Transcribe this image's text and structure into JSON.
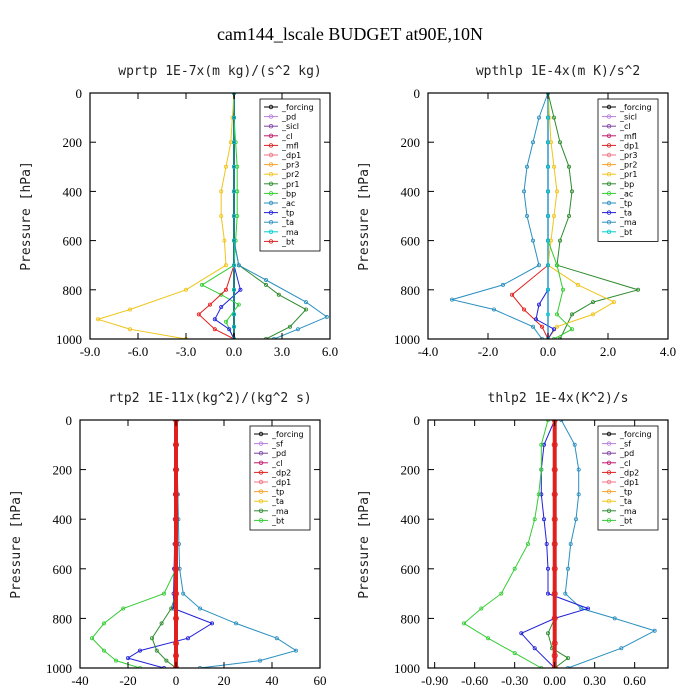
{
  "title": "cam144_lscale  BUDGET at90E,10N",
  "colors": {
    "black": "#000000",
    "red": "#e0201e",
    "orange": "#f5a02a",
    "gold": "#f0c419",
    "green": "#2e8b2e",
    "lime": "#33cc33",
    "teal": "#2a8fbf",
    "blue": "#2020d8",
    "cyan": "#00cccc",
    "violet": "#b57edc",
    "purple": "#7b3fa0",
    "magenta": "#c0186b",
    "pink": "#f07080"
  },
  "chart_data": [
    {
      "type": "line",
      "title": "wprtp   1E-7x(m kg)/(s^2 kg)",
      "ylabel": "Pressure [hPa]",
      "xlim": [
        -9,
        6
      ],
      "ylim": [
        1000,
        0
      ],
      "xticks": [
        "-9.0",
        "-6.0",
        "-3.0",
        "0.0",
        "3.0",
        "6.0"
      ],
      "xtick_values": [
        -9,
        -6,
        -3,
        0,
        3,
        6
      ],
      "yticks": [
        "0",
        "200",
        "400",
        "600",
        "800",
        "1000"
      ],
      "ytick_values": [
        0,
        200,
        400,
        600,
        800,
        1000
      ],
      "legend_position": "top-right-inside",
      "legend": [
        "_forcing",
        "_pd",
        "_sicl",
        "_cl",
        "_mfl",
        "_dp1",
        "_pr3",
        "_pr2",
        "_pr1",
        "_bp",
        "_ac",
        "_tp",
        "_ta",
        "_ma",
        "_bt"
      ],
      "series": [
        {
          "name": "_forcing",
          "color": "#000000",
          "width": 1.8,
          "x": [
            0,
            0,
            0,
            0,
            0,
            0,
            0,
            0,
            0,
            0,
            0,
            0
          ],
          "y": [
            0,
            100,
            200,
            300,
            400,
            500,
            600,
            700,
            800,
            900,
            950,
            1000
          ]
        },
        {
          "name": "_pr1",
          "color": "#f0c419",
          "width": 1,
          "x": [
            0,
            -0.1,
            -0.2,
            -0.5,
            -0.8,
            -0.8,
            -0.6,
            -0.5,
            -3.0,
            -6.5,
            -8.5,
            -6.5,
            -3.0
          ],
          "y": [
            0,
            100,
            200,
            300,
            400,
            500,
            600,
            700,
            800,
            880,
            920,
            960,
            1000
          ]
        },
        {
          "name": "_ac",
          "color": "#33cc33",
          "width": 1,
          "x": [
            0,
            0,
            0.1,
            0.2,
            0.2,
            0.2,
            0.1,
            0,
            -2.0,
            -0.8,
            0.3,
            -0.5,
            0
          ],
          "y": [
            0,
            100,
            200,
            300,
            400,
            500,
            600,
            700,
            780,
            820,
            860,
            930,
            1000
          ]
        },
        {
          "name": "_bp",
          "color": "#2e8b2e",
          "width": 1,
          "x": [
            0,
            0,
            0,
            0,
            0,
            0,
            0,
            0.3,
            2.0,
            2.8,
            4.5,
            3.5,
            2.0
          ],
          "y": [
            0,
            100,
            200,
            300,
            400,
            500,
            600,
            700,
            780,
            820,
            880,
            950,
            1000
          ]
        },
        {
          "name": "_tp",
          "color": "#2a8fbf",
          "width": 1,
          "x": [
            0,
            0,
            0,
            0,
            0,
            0,
            0,
            0.3,
            2.0,
            4.5,
            5.8,
            4.0,
            2.5
          ],
          "y": [
            0,
            100,
            200,
            300,
            400,
            500,
            600,
            700,
            760,
            850,
            910,
            960,
            1000
          ]
        },
        {
          "name": "_ta",
          "color": "#2020d8",
          "width": 1,
          "x": [
            0,
            0,
            0,
            0,
            0,
            0,
            0,
            0,
            0.4,
            -0.8,
            -1.2,
            -0.3,
            0
          ],
          "y": [
            0,
            100,
            200,
            300,
            400,
            500,
            600,
            700,
            800,
            870,
            920,
            960,
            1000
          ]
        },
        {
          "name": "_dp1",
          "color": "#e0201e",
          "width": 1,
          "x": [
            0,
            0,
            0,
            0,
            0,
            0,
            0,
            0,
            -0.5,
            -1.5,
            -2.2,
            -1.2,
            0
          ],
          "y": [
            0,
            100,
            200,
            300,
            400,
            500,
            600,
            700,
            800,
            860,
            900,
            960,
            1000
          ]
        },
        {
          "name": "_bt",
          "color": "#00cccc",
          "width": 1,
          "x": [
            0,
            0,
            0,
            0,
            0,
            0,
            0,
            0,
            0,
            0,
            0,
            0
          ],
          "y": [
            0,
            100,
            200,
            300,
            400,
            500,
            600,
            700,
            800,
            900,
            950,
            1000
          ]
        }
      ]
    },
    {
      "type": "line",
      "title": "wpthlp   1E-4x(m K)/s^2",
      "ylabel": "Pressure [hPa]",
      "xlim": [
        -4,
        4
      ],
      "ylim": [
        1000,
        0
      ],
      "xticks": [
        "-4.0",
        "-2.0",
        "0.0",
        "2.0",
        "4.0"
      ],
      "xtick_values": [
        -4,
        -2,
        0,
        2,
        4
      ],
      "yticks": [
        "0",
        "200",
        "400",
        "600",
        "800",
        "1000"
      ],
      "ytick_values": [
        0,
        200,
        400,
        600,
        800,
        1000
      ],
      "legend_position": "top-right-inside",
      "legend": [
        "_forcing",
        "_sicl",
        "_cl",
        "_mfl",
        "_dp1",
        "_pr3",
        "_pr2",
        "_pr1",
        "_bp",
        "_ac",
        "_tp",
        "_ta",
        "_ma",
        "_bt"
      ],
      "series": [
        {
          "name": "_forcing",
          "color": "#b57edc",
          "width": 1.8,
          "x": [
            0,
            0,
            0,
            0,
            0,
            0,
            0,
            0,
            0,
            0
          ],
          "y": [
            0,
            100,
            200,
            300,
            400,
            500,
            600,
            700,
            800,
            1000
          ]
        },
        {
          "name": "_bp",
          "color": "#2e8b2e",
          "width": 1,
          "x": [
            0,
            0.2,
            0.4,
            0.7,
            0.8,
            0.7,
            0.4,
            0.3,
            3.0,
            1.5,
            0.8,
            0.4
          ],
          "y": [
            0,
            100,
            200,
            300,
            400,
            500,
            600,
            700,
            800,
            850,
            900,
            1000
          ]
        },
        {
          "name": "_tp",
          "color": "#2a8fbf",
          "width": 1,
          "x": [
            0,
            -0.3,
            -0.5,
            -0.7,
            -0.8,
            -0.7,
            -0.5,
            -0.3,
            -1.5,
            -3.2,
            -1.8,
            -0.5,
            -0.2
          ],
          "y": [
            0,
            100,
            200,
            300,
            400,
            500,
            600,
            700,
            780,
            840,
            880,
            950,
            1000
          ]
        },
        {
          "name": "_pr1",
          "color": "#f0c419",
          "width": 1,
          "x": [
            0,
            0.05,
            0.1,
            0.2,
            0.3,
            0.2,
            0.1,
            0,
            1.0,
            2.2,
            1.5,
            0.3,
            0
          ],
          "y": [
            0,
            100,
            200,
            300,
            400,
            500,
            600,
            700,
            780,
            850,
            900,
            950,
            1000
          ]
        },
        {
          "name": "_dp1",
          "color": "#e0201e",
          "width": 1,
          "x": [
            0,
            0,
            0,
            0,
            0,
            0,
            0,
            0,
            -1.2,
            -0.8,
            -0.2,
            0
          ],
          "y": [
            0,
            100,
            200,
            300,
            400,
            500,
            600,
            700,
            820,
            880,
            950,
            1000
          ]
        },
        {
          "name": "_ac",
          "color": "#33cc33",
          "width": 1,
          "x": [
            0,
            0,
            0,
            0,
            0,
            0,
            0,
            0.3,
            0.5,
            0.3,
            0.8,
            0.2
          ],
          "y": [
            0,
            100,
            200,
            300,
            400,
            500,
            600,
            700,
            800,
            900,
            960,
            1000
          ]
        },
        {
          "name": "_ta",
          "color": "#2020d8",
          "width": 1,
          "x": [
            0,
            0,
            0,
            0,
            0,
            0,
            0,
            0,
            0,
            -0.3,
            -0.4,
            0.2,
            0
          ],
          "y": [
            0,
            100,
            200,
            300,
            400,
            500,
            600,
            700,
            800,
            860,
            920,
            960,
            1000
          ]
        },
        {
          "name": "_bt",
          "color": "#00cccc",
          "width": 1,
          "x": [
            0,
            0,
            0,
            0,
            0,
            0,
            0,
            0,
            0,
            0,
            0
          ],
          "y": [
            0,
            100,
            200,
            300,
            400,
            500,
            600,
            700,
            800,
            900,
            1000
          ]
        }
      ]
    },
    {
      "type": "line",
      "title": "rtp2   1E-11x(kg^2)/(kg^2 s)",
      "ylabel": "Pressure [hPa]",
      "xlim": [
        -40,
        60
      ],
      "ylim": [
        1000,
        0
      ],
      "xticks": [
        "-40",
        "-20",
        "0",
        "20",
        "40",
        "60"
      ],
      "xtick_values": [
        -40,
        -20,
        0,
        20,
        40,
        60
      ],
      "yticks": [
        "0",
        "200",
        "400",
        "600",
        "800",
        "1000"
      ],
      "ytick_values": [
        0,
        200,
        400,
        600,
        800,
        1000
      ],
      "legend_position": "top-right-inside",
      "legend": [
        "_forcing",
        "_sf",
        "_pd",
        "_cl",
        "_dp2",
        "_dp1",
        "_tp",
        "_ta",
        "_ma",
        "_bt"
      ],
      "series": [
        {
          "name": "_tp",
          "color": "#2a8fbf",
          "width": 1,
          "x": [
            0,
            0.3,
            0.5,
            0.8,
            1.0,
            1.2,
            1.5,
            3.0,
            10,
            25,
            42,
            50,
            35,
            10
          ],
          "y": [
            0,
            100,
            200,
            300,
            400,
            500,
            600,
            700,
            760,
            820,
            880,
            930,
            970,
            1000
          ]
        },
        {
          "name": "_ta",
          "color": "#2020d8",
          "width": 1,
          "x": [
            0,
            -0.2,
            -0.3,
            -0.4,
            -0.5,
            -0.6,
            -0.8,
            -1.0,
            -1.0,
            15,
            5,
            -15,
            -20,
            -5
          ],
          "y": [
            0,
            100,
            200,
            300,
            400,
            500,
            600,
            700,
            760,
            820,
            880,
            930,
            960,
            1000
          ]
        },
        {
          "name": "_dp1",
          "color": "#33cc33",
          "width": 1,
          "x": [
            0,
            0,
            0,
            0,
            0,
            0,
            0,
            -5,
            -22,
            -30,
            -35,
            -30,
            -25,
            -15
          ],
          "y": [
            0,
            100,
            200,
            300,
            400,
            500,
            600,
            700,
            760,
            820,
            880,
            930,
            970,
            1000
          ]
        },
        {
          "name": "_dp2",
          "color": "#2e8b2e",
          "width": 1,
          "x": [
            0,
            0,
            0,
            0,
            0,
            0,
            0,
            0,
            -2,
            -6,
            -10,
            -8,
            -4,
            0
          ],
          "y": [
            0,
            100,
            200,
            300,
            400,
            500,
            600,
            700,
            760,
            820,
            880,
            930,
            970,
            1000
          ]
        },
        {
          "name": "_forcing",
          "color": "#e0201e",
          "width": 4,
          "x": [
            0,
            0,
            0,
            0,
            0,
            0,
            0,
            0,
            0,
            0,
            0,
            0
          ],
          "y": [
            0,
            100,
            200,
            300,
            400,
            500,
            600,
            700,
            800,
            900,
            950,
            1000
          ]
        }
      ]
    },
    {
      "type": "line",
      "title": "thlp2   1E-4x(K^2)/s",
      "ylabel": "Pressure [hPa]",
      "xlim": [
        -0.95,
        0.85
      ],
      "ylim": [
        1000,
        0
      ],
      "xticks": [
        "-0.90",
        "-0.60",
        "-0.30",
        "0.00",
        "0.30",
        "0.60"
      ],
      "xtick_values": [
        -0.9,
        -0.6,
        -0.3,
        0,
        0.3,
        0.6
      ],
      "yticks": [
        "0",
        "200",
        "400",
        "600",
        "800",
        "1000"
      ],
      "ytick_values": [
        0,
        200,
        400,
        600,
        800,
        1000
      ],
      "legend_position": "top-right-inside",
      "legend": [
        "_forcing",
        "_sf",
        "_pd",
        "_cl",
        "_dp2",
        "_dp1",
        "_tp",
        "_ta",
        "_ma",
        "_bt"
      ],
      "series": [
        {
          "name": "_tp",
          "color": "#2a8fbf",
          "width": 1,
          "x": [
            0.05,
            0.15,
            0.18,
            0.18,
            0.16,
            0.12,
            0.1,
            0.08,
            0.2,
            0.45,
            0.75,
            0.5,
            0.1
          ],
          "y": [
            0,
            100,
            200,
            300,
            400,
            500,
            600,
            700,
            760,
            800,
            850,
            920,
            1000
          ]
        },
        {
          "name": "_ta",
          "color": "#2020d8",
          "width": 1,
          "x": [
            0,
            -0.08,
            -0.1,
            -0.1,
            -0.08,
            -0.06,
            -0.05,
            -0.05,
            0.25,
            0.0,
            -0.25,
            -0.15,
            0
          ],
          "y": [
            0,
            100,
            200,
            300,
            400,
            500,
            600,
            700,
            760,
            800,
            860,
            920,
            1000
          ]
        },
        {
          "name": "_dp1",
          "color": "#33cc33",
          "width": 1,
          "x": [
            -0.05,
            -0.1,
            -0.1,
            -0.12,
            -0.15,
            -0.2,
            -0.3,
            -0.4,
            -0.55,
            -0.68,
            -0.5,
            -0.3,
            -0.1
          ],
          "y": [
            0,
            100,
            200,
            300,
            400,
            500,
            600,
            700,
            760,
            820,
            880,
            940,
            1000
          ]
        },
        {
          "name": "_dp2",
          "color": "#2e8b2e",
          "width": 1,
          "x": [
            0,
            0,
            0,
            0,
            0,
            0,
            0,
            0,
            0,
            -0.05,
            -0.02,
            0.1,
            0
          ],
          "y": [
            0,
            100,
            200,
            300,
            400,
            500,
            600,
            700,
            800,
            860,
            920,
            960,
            1000
          ]
        },
        {
          "name": "_forcing",
          "color": "#e0201e",
          "width": 4,
          "x": [
            0,
            0,
            0,
            0,
            0,
            0,
            0,
            0,
            0,
            0,
            0,
            0
          ],
          "y": [
            0,
            100,
            200,
            300,
            400,
            500,
            600,
            700,
            800,
            900,
            950,
            1000
          ]
        }
      ]
    }
  ]
}
